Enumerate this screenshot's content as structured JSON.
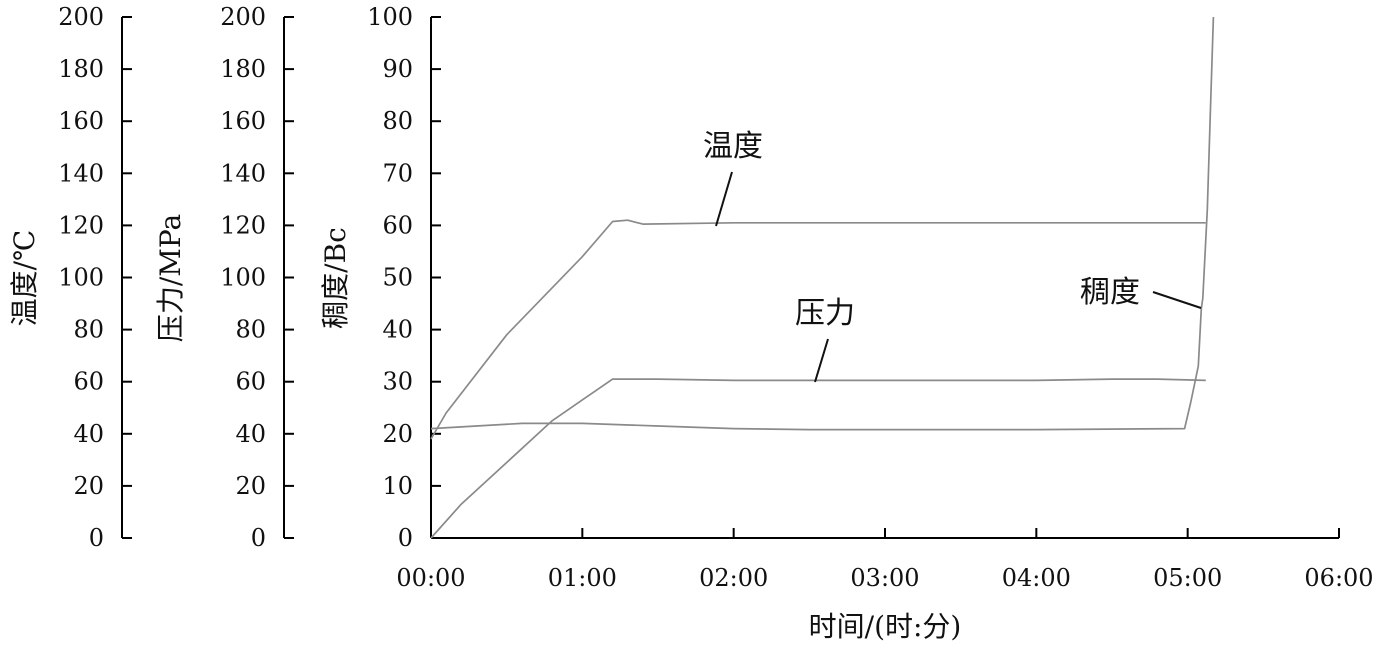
{
  "chart_data": {
    "type": "line",
    "xlabel": "时间/(时:分)",
    "x_unit": "time (hours)",
    "x_tick_labels": [
      "00:00",
      "01:00",
      "02:00",
      "03:00",
      "04:00",
      "05:00",
      "06:00"
    ],
    "xlim": [
      0,
      6
    ],
    "axes": [
      {
        "id": "temperature",
        "label": "温度/℃",
        "ylim": [
          0,
          200
        ],
        "ticks": [
          "0",
          "20",
          "40",
          "60",
          "80",
          "100",
          "120",
          "140",
          "160",
          "180",
          "200"
        ]
      },
      {
        "id": "pressure",
        "label": "压力/MPa",
        "ylim": [
          0,
          200
        ],
        "ticks": [
          "0",
          "20",
          "40",
          "60",
          "80",
          "100",
          "120",
          "140",
          "160",
          "180",
          "200"
        ]
      },
      {
        "id": "consistency",
        "label": "稠度/Bc",
        "ylim": [
          0,
          100
        ],
        "ticks": [
          "0",
          "10",
          "20",
          "30",
          "40",
          "50",
          "60",
          "70",
          "80",
          "90",
          "100"
        ]
      }
    ],
    "series": [
      {
        "name": "温度",
        "axis": "temperature",
        "points": [
          [
            0,
            38
          ],
          [
            0.1,
            48
          ],
          [
            0.5,
            78
          ],
          [
            1.0,
            108
          ],
          [
            1.2,
            121.5
          ],
          [
            1.3,
            122
          ],
          [
            1.4,
            120.5
          ],
          [
            2.0,
            121
          ],
          [
            3.0,
            121
          ],
          [
            4.0,
            121
          ],
          [
            5.0,
            121
          ],
          [
            5.12,
            121
          ]
        ]
      },
      {
        "name": "压力",
        "axis": "pressure",
        "points": [
          [
            0,
            0
          ],
          [
            0.2,
            13
          ],
          [
            0.5,
            29
          ],
          [
            0.8,
            45
          ],
          [
            1.0,
            53
          ],
          [
            1.2,
            61
          ],
          [
            1.5,
            61
          ],
          [
            2.0,
            60.5
          ],
          [
            3.0,
            60.5
          ],
          [
            4.0,
            60.5
          ],
          [
            4.5,
            61
          ],
          [
            4.8,
            61
          ],
          [
            5.12,
            60.5
          ]
        ]
      },
      {
        "name": "稠度",
        "axis": "consistency",
        "points": [
          [
            0,
            21
          ],
          [
            0.3,
            21.5
          ],
          [
            0.6,
            22
          ],
          [
            1.0,
            22
          ],
          [
            1.5,
            21.5
          ],
          [
            2.0,
            21
          ],
          [
            2.5,
            20.8
          ],
          [
            3.0,
            20.8
          ],
          [
            4.0,
            20.8
          ],
          [
            4.98,
            21
          ],
          [
            5.02,
            26
          ],
          [
            5.07,
            33
          ],
          [
            5.09,
            44
          ],
          [
            5.1,
            46
          ],
          [
            5.13,
            63
          ],
          [
            5.15,
            82
          ],
          [
            5.17,
            100
          ]
        ]
      }
    ],
    "annotations": [
      {
        "text": "温度",
        "series": "温度"
      },
      {
        "text": "压力",
        "series": "压力"
      },
      {
        "text": "稠度",
        "series": "稠度"
      }
    ]
  }
}
